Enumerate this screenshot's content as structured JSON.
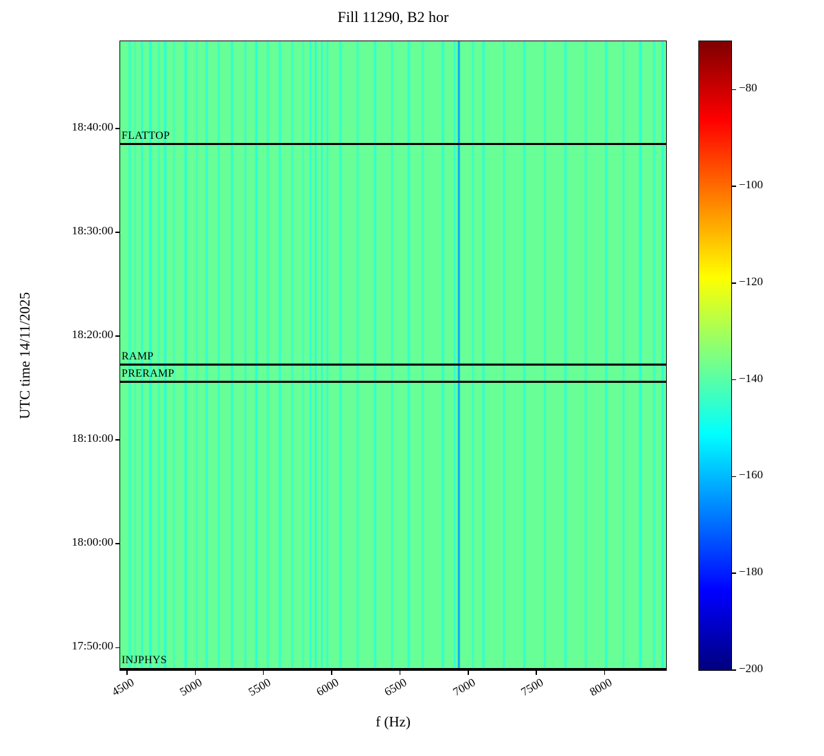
{
  "chart_data": {
    "type": "heatmap",
    "title": "Fill 11290, B2 hor",
    "xlabel": "f (Hz)",
    "ylabel": "UTC time 14/11/2025",
    "colormap": "jet",
    "value_range": [
      -200,
      -70
    ],
    "colorbar_ticks": [
      -80,
      -100,
      -120,
      -140,
      -160,
      -180,
      -200
    ],
    "x_range_hz": [
      4450,
      8450
    ],
    "x_ticks": [
      4500,
      5000,
      5500,
      6000,
      6500,
      7000,
      7500,
      8000
    ],
    "time_start": "17:47:50",
    "time_end": "18:48:25",
    "y_ticks": [
      "17:50:00",
      "18:00:00",
      "18:10:00",
      "18:20:00",
      "18:30:00",
      "18:40:00"
    ],
    "background_value": -138,
    "stripes": [
      {
        "f": 4520,
        "w": 18,
        "v": -144
      },
      {
        "f": 4560,
        "w": 12,
        "v": -143
      },
      {
        "f": 4610,
        "w": 15,
        "v": -145
      },
      {
        "f": 4672,
        "w": 20,
        "v": -146
      },
      {
        "f": 4733,
        "w": 14,
        "v": -143
      },
      {
        "f": 4780,
        "w": 18,
        "v": -146
      },
      {
        "f": 4845,
        "w": 12,
        "v": -143
      },
      {
        "f": 4930,
        "w": 18,
        "v": -146
      },
      {
        "f": 5012,
        "w": 14,
        "v": -143
      },
      {
        "f": 5085,
        "w": 18,
        "v": -145
      },
      {
        "f": 5172,
        "w": 15,
        "v": -144
      },
      {
        "f": 5270,
        "w": 18,
        "v": -145
      },
      {
        "f": 5368,
        "w": 14,
        "v": -144
      },
      {
        "f": 5448,
        "w": 18,
        "v": -146
      },
      {
        "f": 5532,
        "w": 15,
        "v": -144
      },
      {
        "f": 5620,
        "w": 18,
        "v": -145
      },
      {
        "f": 5712,
        "w": 14,
        "v": -144
      },
      {
        "f": 5790,
        "w": 12,
        "v": -143
      },
      {
        "f": 5845,
        "w": 10,
        "v": -148
      },
      {
        "f": 5883,
        "w": 10,
        "v": -150
      },
      {
        "f": 5928,
        "w": 10,
        "v": -147
      },
      {
        "f": 5968,
        "w": 15,
        "v": -144
      },
      {
        "f": 6065,
        "w": 18,
        "v": -145
      },
      {
        "f": 6190,
        "w": 15,
        "v": -144
      },
      {
        "f": 6318,
        "w": 18,
        "v": -145
      },
      {
        "f": 6442,
        "w": 15,
        "v": -144
      },
      {
        "f": 6565,
        "w": 18,
        "v": -145
      },
      {
        "f": 6668,
        "w": 15,
        "v": -144
      },
      {
        "f": 6815,
        "w": 18,
        "v": -145
      },
      {
        "f": 6902,
        "w": 10,
        "v": -147
      },
      {
        "f": 6932,
        "w": 14,
        "v": -163
      },
      {
        "f": 7035,
        "w": 15,
        "v": -144
      },
      {
        "f": 7112,
        "w": 18,
        "v": -145
      },
      {
        "f": 7262,
        "w": 15,
        "v": -144
      },
      {
        "f": 7412,
        "w": 18,
        "v": -145
      },
      {
        "f": 7562,
        "w": 15,
        "v": -144
      },
      {
        "f": 7713,
        "w": 18,
        "v": -145
      },
      {
        "f": 7862,
        "w": 15,
        "v": -144
      },
      {
        "f": 8012,
        "w": 18,
        "v": -145
      },
      {
        "f": 8138,
        "w": 15,
        "v": -144
      },
      {
        "f": 8262,
        "w": 20,
        "v": -146
      },
      {
        "f": 8363,
        "w": 15,
        "v": -144
      },
      {
        "f": 8425,
        "w": 18,
        "v": -146
      }
    ],
    "annotations": [
      {
        "label": "FLATTOP",
        "time": "18:38:30"
      },
      {
        "label": "RAMP",
        "time": "18:17:15"
      },
      {
        "label": "PRERAMP",
        "time": "18:15:35"
      },
      {
        "label": "INJPHYS",
        "time": "17:47:55"
      }
    ]
  }
}
